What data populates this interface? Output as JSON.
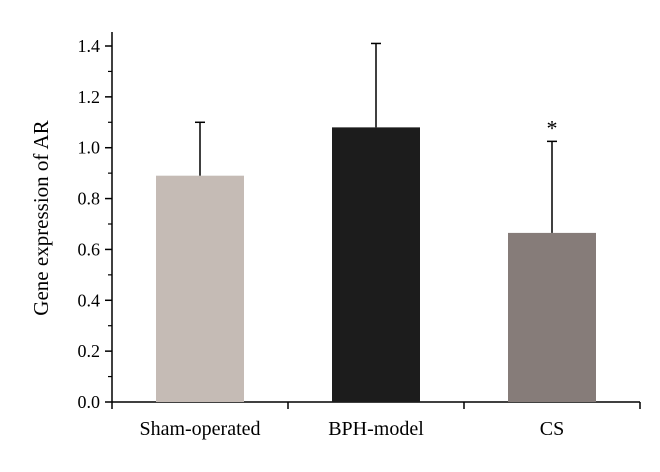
{
  "chart_data": {
    "type": "bar",
    "categories": [
      "Sham-operated",
      "BPH-model",
      "CS"
    ],
    "values": [
      0.89,
      1.08,
      0.665
    ],
    "error_upper": [
      1.1,
      1.41,
      1.025
    ],
    "colors": [
      "#c5bbb5",
      "#1c1c1c",
      "#867c79"
    ],
    "annotations": [
      "",
      "",
      "*"
    ],
    "xlabel": "",
    "ylabel": "Gene expression of AR",
    "ylim": [
      0.0,
      1.45
    ],
    "yticks": [
      "0.0",
      "0.2",
      "0.4",
      "0.6",
      "0.8",
      "1.0",
      "1.2",
      "1.4"
    ],
    "grid": false
  }
}
